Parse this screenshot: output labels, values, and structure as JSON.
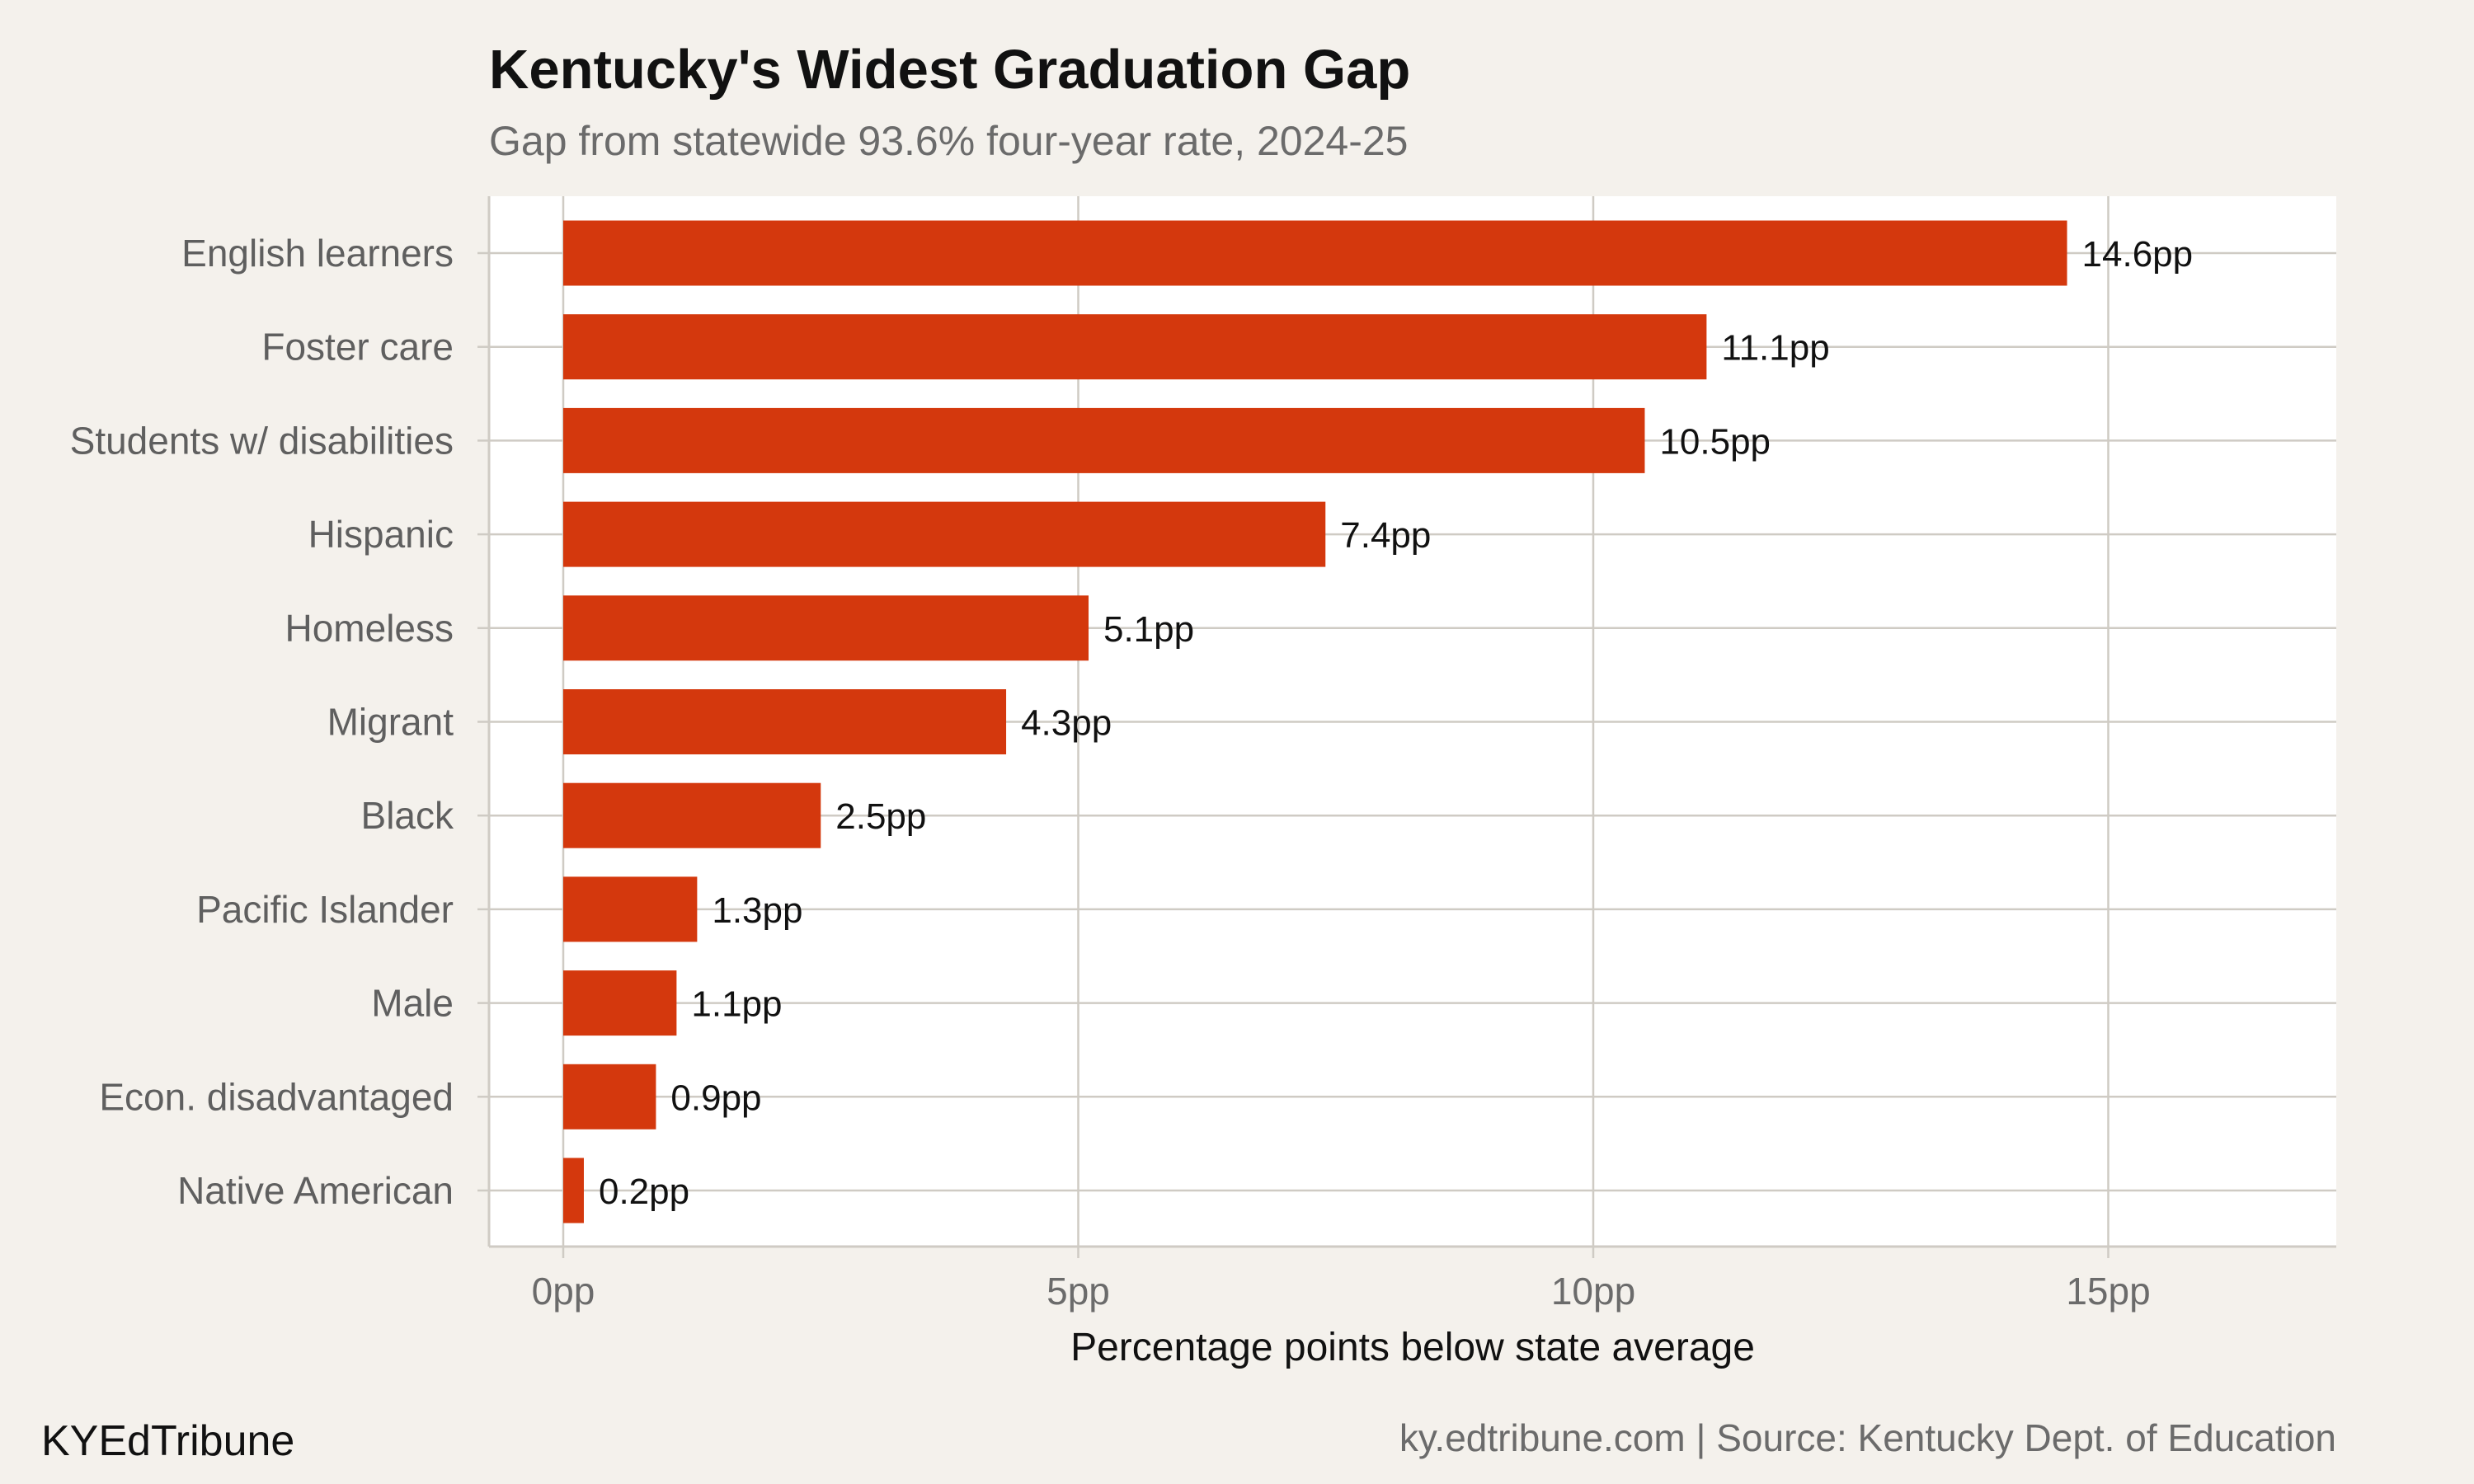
{
  "header": {
    "title": "Kentucky's Widest Graduation Gap",
    "subtitle": "Gap from statewide 93.6% four-year rate, 2024-25"
  },
  "footer": {
    "brand": "KYEdTribune",
    "source": "ky.edtribune.com | Source: Kentucky Dept. of Education"
  },
  "colors": {
    "bar": "#d4380d",
    "background": "#f4f1ec",
    "panel": "#ffffff",
    "grid": "#cfcbc4"
  },
  "chart_data": {
    "type": "bar",
    "orientation": "horizontal",
    "title": "Kentucky's Widest Graduation Gap",
    "subtitle": "Gap from statewide 93.6% four-year rate, 2024-25",
    "xlabel": "Percentage points below state average",
    "ylabel": "",
    "xlim": [
      0,
      17.2
    ],
    "xticks": [
      0,
      5,
      10,
      15
    ],
    "xtick_labels": [
      "0pp",
      "5pp",
      "10pp",
      "15pp"
    ],
    "grid": true,
    "legend": "none",
    "categories": [
      "English learners",
      "Foster care",
      "Students w/ disabilities",
      "Hispanic",
      "Homeless",
      "Migrant",
      "Black",
      "Pacific Islander",
      "Male",
      "Econ. disadvantaged",
      "Native American"
    ],
    "values": [
      14.6,
      11.1,
      10.5,
      7.4,
      5.1,
      4.3,
      2.5,
      1.3,
      1.1,
      0.9,
      0.2
    ],
    "data_labels": [
      "14.6pp",
      "11.1pp",
      "10.5pp",
      "7.4pp",
      "5.1pp",
      "4.3pp",
      "2.5pp",
      "1.3pp",
      "1.1pp",
      "0.9pp",
      "0.2pp"
    ]
  }
}
